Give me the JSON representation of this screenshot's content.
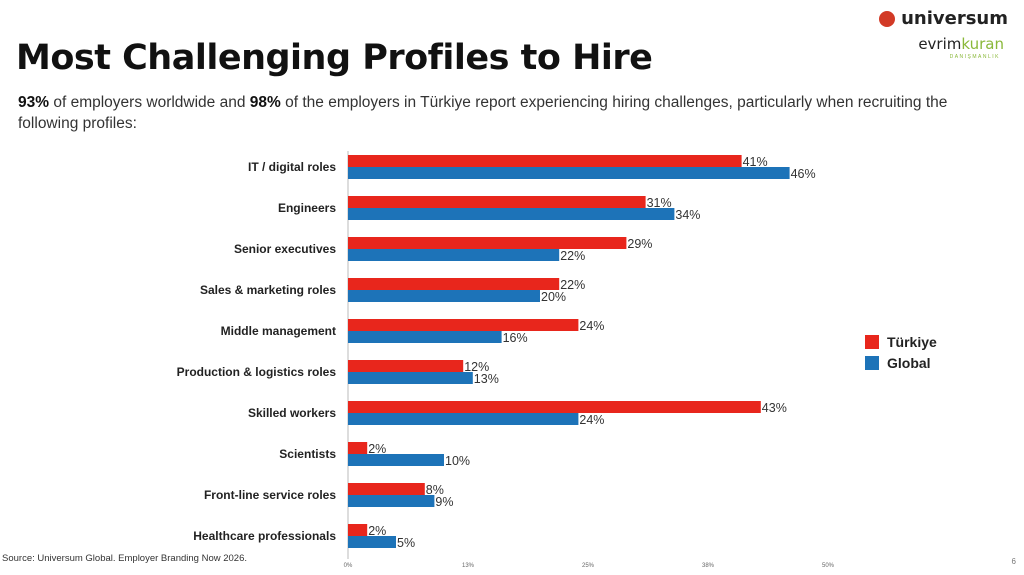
{
  "header": {
    "title": "Most Challenging Profiles to Hire",
    "subtitle_pct1": "93%",
    "subtitle_part1": " of employers worldwide and ",
    "subtitle_pct2": "98%",
    "subtitle_part2": " of the employers in Türkiye report experiencing hiring challenges, particularly when recruiting the following profiles:"
  },
  "logo": {
    "brand": "universum",
    "partner_a": "evrim",
    "partner_b": "kuran",
    "partner_sub": "DANIŞMANLIK"
  },
  "footer": {
    "source": "Source: Universum Global. Employer Branding Now 2026.",
    "page": "6"
  },
  "colors": {
    "turkiye": "#e8261c",
    "global": "#1d73b8"
  },
  "chart_data": {
    "type": "bar",
    "orientation": "horizontal",
    "categories": [
      "IT / digital roles",
      "Engineers",
      "Senior executives",
      "Sales & marketing roles",
      "Middle management",
      "Production & logistics roles",
      "Skilled workers",
      "Scientists",
      "Front-line service roles",
      "Healthcare professionals"
    ],
    "series": [
      {
        "name": "Türkiye",
        "color": "#e8261c",
        "values": [
          41,
          31,
          29,
          22,
          24,
          12,
          43,
          2,
          8,
          2
        ],
        "labels": [
          "41%",
          "31%",
          "29%",
          "22%",
          "24%",
          "12%",
          "43%",
          "2%",
          "8%",
          "2%"
        ]
      },
      {
        "name": "Global",
        "color": "#1d73b8",
        "values": [
          46,
          34,
          22,
          20,
          16,
          13,
          24,
          10,
          9,
          5
        ],
        "labels": [
          "46%",
          "34%",
          "22%",
          "20%",
          "16%",
          "13%",
          "24%",
          "10%",
          "9%",
          "5%"
        ]
      }
    ],
    "xlim": [
      0,
      50
    ],
    "xticks": [
      0,
      12.5,
      25,
      37.5,
      50
    ],
    "xtick_labels": [
      "0%",
      "13%",
      "25%",
      "38%",
      "50%"
    ],
    "legend": "right",
    "grid": false
  }
}
